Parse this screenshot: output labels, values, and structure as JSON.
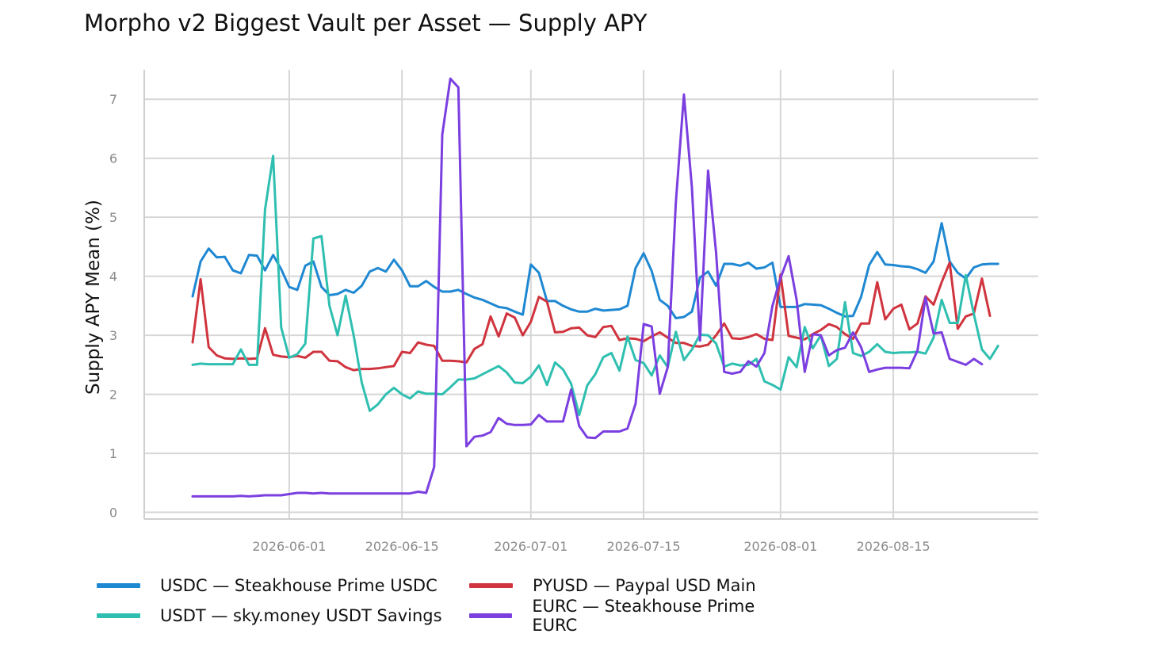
{
  "chart_data": {
    "type": "line",
    "title": "Morpho v2 Biggest Vault per Asset — Supply APY",
    "xlabel": "",
    "ylabel": "Supply APY Mean (%)",
    "x_start": "2026-05-20",
    "x_end": "2026-08-27",
    "xlim": [
      "2026-05-14",
      "2026-09-02"
    ],
    "ylim": [
      -0.1,
      7.5
    ],
    "x_ticks": [
      "2026-06-01",
      "2026-06-15",
      "2026-07-01",
      "2026-07-15",
      "2026-08-01",
      "2026-08-15"
    ],
    "y_ticks": [
      0,
      1,
      2,
      3,
      4,
      5,
      6,
      7
    ],
    "grid": true,
    "legend_position": "bottom",
    "series": [
      {
        "name": "USDC — Steakhouse Prime USDC",
        "color": "#1f88d2",
        "values": [
          3.66,
          4.25,
          4.47,
          4.32,
          4.33,
          4.1,
          4.05,
          4.36,
          4.35,
          4.1,
          4.36,
          4.12,
          3.82,
          3.77,
          4.18,
          4.25,
          3.82,
          3.68,
          3.7,
          3.77,
          3.72,
          3.84,
          4.08,
          4.14,
          4.08,
          4.28,
          4.1,
          3.83,
          3.83,
          3.92,
          3.82,
          3.74,
          3.74,
          3.77,
          3.7,
          3.64,
          3.6,
          3.54,
          3.48,
          3.46,
          3.4,
          3.35,
          4.2,
          4.06,
          3.58,
          3.58,
          3.5,
          3.44,
          3.4,
          3.4,
          3.45,
          3.42,
          3.43,
          3.44,
          3.5,
          4.14,
          4.39,
          4.09,
          3.6,
          3.5,
          3.29,
          3.31,
          3.4,
          3.98,
          4.08,
          3.84,
          4.21,
          4.21,
          4.18,
          4.23,
          4.13,
          4.15,
          4.23,
          3.48,
          3.48,
          3.48,
          3.53,
          3.52,
          3.51,
          3.45,
          3.38,
          3.32,
          3.33,
          3.65,
          4.19,
          4.41,
          4.2,
          4.19,
          4.17,
          4.16,
          4.12,
          4.06,
          4.25,
          4.9,
          4.25,
          4.06,
          3.96,
          4.15,
          4.2,
          4.21,
          4.21
        ]
      },
      {
        "name": "PYUSD — Paypal USD Main",
        "color": "#d0343e",
        "values": [
          2.88,
          3.95,
          2.8,
          2.66,
          2.61,
          2.6,
          2.61,
          2.6,
          2.61,
          3.12,
          2.67,
          2.64,
          2.63,
          2.65,
          2.62,
          2.72,
          2.72,
          2.57,
          2.56,
          2.46,
          2.41,
          2.43,
          2.43,
          2.44,
          2.46,
          2.48,
          2.72,
          2.7,
          2.88,
          2.84,
          2.82,
          2.57,
          2.57,
          2.56,
          2.54,
          2.77,
          2.85,
          3.32,
          2.98,
          3.37,
          3.3,
          3.0,
          3.23,
          3.65,
          3.57,
          3.05,
          3.06,
          3.12,
          3.13,
          3.0,
          2.97,
          3.14,
          3.16,
          2.92,
          2.95,
          2.94,
          2.9,
          2.98,
          3.05,
          2.96,
          2.87,
          2.87,
          2.82,
          2.81,
          2.84,
          3.0,
          3.2,
          2.95,
          2.94,
          2.97,
          3.02,
          2.94,
          2.92,
          4.03,
          2.99,
          2.96,
          2.93,
          3.02,
          3.09,
          3.19,
          3.14,
          3.02,
          2.94,
          3.2,
          3.2,
          3.9,
          3.27,
          3.45,
          3.52,
          3.1,
          3.2,
          3.66,
          3.52,
          3.9,
          4.23,
          3.11,
          3.32,
          3.37,
          3.96,
          3.33
        ]
      },
      {
        "name": "USDT — sky.money USDT Savings",
        "color": "#2fbfb0",
        "values": [
          2.5,
          2.52,
          2.51,
          2.51,
          2.51,
          2.51,
          2.76,
          2.5,
          2.5,
          5.13,
          6.04,
          3.13,
          2.62,
          2.68,
          2.86,
          4.64,
          4.68,
          3.5,
          3.0,
          3.67,
          3.0,
          2.2,
          1.72,
          1.83,
          2.0,
          2.11,
          2.0,
          1.93,
          2.05,
          2.01,
          2.01,
          2.0,
          2.12,
          2.25,
          2.25,
          2.27,
          2.34,
          2.41,
          2.48,
          2.37,
          2.2,
          2.19,
          2.3,
          2.49,
          2.16,
          2.54,
          2.42,
          2.18,
          1.65,
          2.15,
          2.34,
          2.63,
          2.7,
          2.4,
          2.98,
          2.58,
          2.53,
          2.32,
          2.66,
          2.46,
          3.06,
          2.58,
          2.76,
          3.01,
          3.0,
          2.86,
          2.47,
          2.52,
          2.49,
          2.5,
          2.6,
          2.22,
          2.16,
          2.08,
          2.63,
          2.46,
          3.14,
          2.78,
          3.0,
          2.48,
          2.6,
          3.56,
          2.7,
          2.65,
          2.72,
          2.85,
          2.72,
          2.7,
          2.71,
          2.71,
          2.72,
          2.69,
          2.96,
          3.6,
          3.21,
          3.21,
          4.02,
          3.36,
          2.76,
          2.6,
          2.82
        ]
      },
      {
        "name": "EURC — Steakhouse Prime EURC",
        "color": "#7b3fe0",
        "values": [
          0.27,
          0.27,
          0.27,
          0.27,
          0.27,
          0.27,
          0.28,
          0.27,
          0.28,
          0.29,
          0.29,
          0.29,
          0.31,
          0.33,
          0.33,
          0.32,
          0.33,
          0.32,
          0.32,
          0.32,
          0.32,
          0.32,
          0.32,
          0.32,
          0.32,
          0.32,
          0.32,
          0.32,
          0.35,
          0.33,
          0.77,
          6.4,
          7.35,
          7.2,
          1.12,
          1.28,
          1.3,
          1.36,
          1.6,
          1.5,
          1.48,
          1.48,
          1.49,
          1.65,
          1.54,
          1.54,
          1.54,
          2.08,
          1.46,
          1.27,
          1.26,
          1.37,
          1.37,
          1.37,
          1.42,
          1.84,
          3.19,
          3.15,
          2.01,
          2.46,
          5.25,
          7.08,
          5.5,
          2.91,
          5.79,
          4.4,
          2.38,
          2.35,
          2.38,
          2.56,
          2.47,
          2.7,
          3.5,
          3.97,
          4.34,
          3.6,
          2.38,
          3.02,
          3.0,
          2.66,
          2.75,
          2.79,
          3.05,
          2.8,
          2.38,
          2.42,
          2.45,
          2.45,
          2.45,
          2.44,
          2.74,
          3.64,
          3.03,
          3.05,
          2.6,
          2.55,
          2.5,
          2.6,
          2.51
        ]
      }
    ]
  }
}
